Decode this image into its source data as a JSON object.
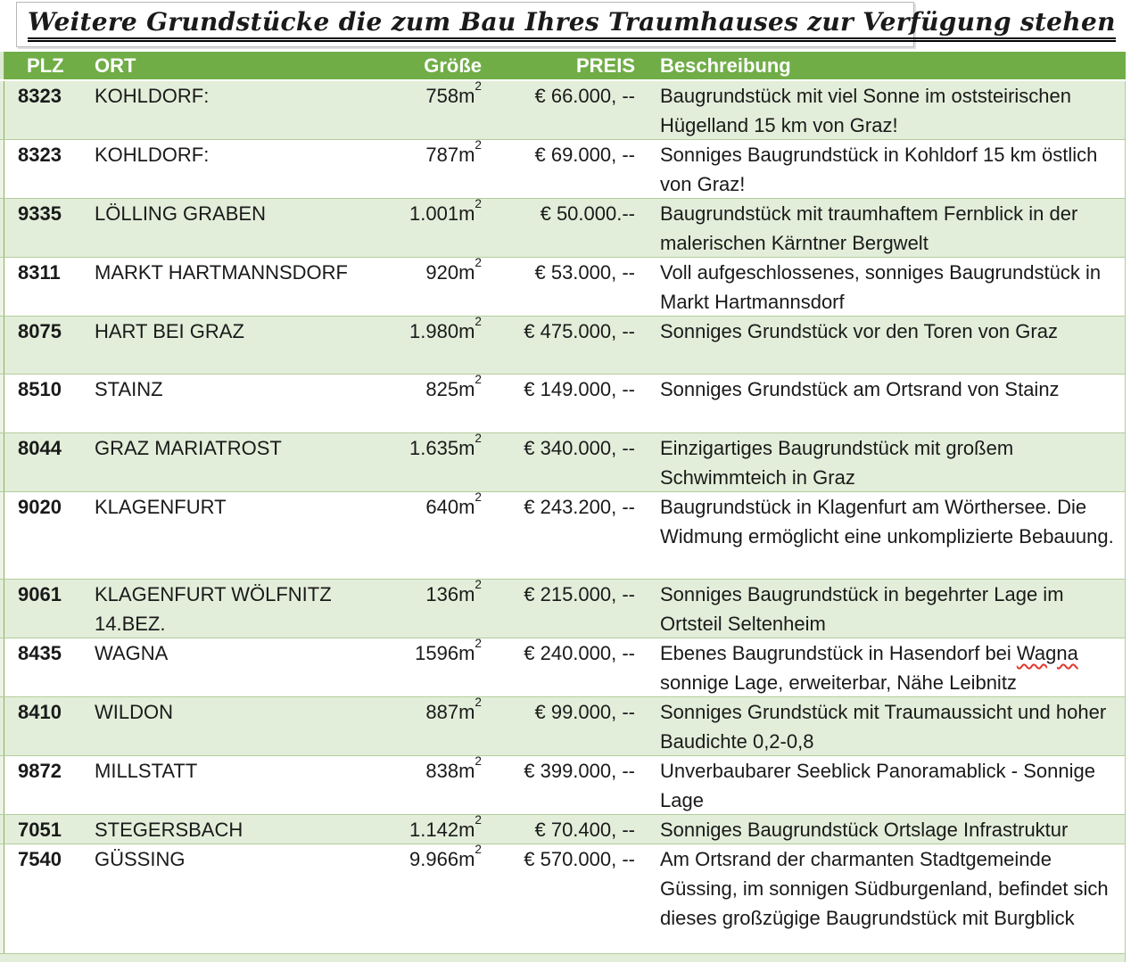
{
  "title": "Weitere Grundstücke die zum Bau Ihres Traumhauses zur Verfügung stehen",
  "colors": {
    "header_bg": "#70ad47",
    "row_alt_bg": "#e3eeda",
    "row_bg": "#ffffff",
    "border": "#b3cc9b",
    "spellcheck_underline": "#e0392e"
  },
  "table": {
    "columns": [
      "PLZ",
      "ORT",
      "Größe",
      "PREIS",
      "Beschreibung"
    ],
    "rows": [
      {
        "plz": "8323",
        "ort": "KOHLDORF:",
        "groesse": "758m²",
        "preis": "€ 66.000, --",
        "beschreibung": "Baugrundstück mit viel Sonne im oststeirischen Hügelland 15 km von Graz!"
      },
      {
        "plz": "8323",
        "ort": "KOHLDORF:",
        "groesse": "787m²",
        "preis": "€ 69.000, --",
        "beschreibung": "Sonniges Baugrundstück in Kohldorf 15 km östlich von Graz!"
      },
      {
        "plz": "9335",
        "ort": "LÖLLING GRABEN",
        "groesse": "1.001m²",
        "preis": "€ 50.000.--",
        "beschreibung": "Baugrundstück mit traumhaftem Fernblick in der malerischen Kärntner Bergwelt"
      },
      {
        "plz": "8311",
        "ort": "MARKT HARTMANNSDORF",
        "groesse": "920m²",
        "preis": "€ 53.000, --",
        "beschreibung": "Voll aufgeschlossenes, sonniges Baugrundstück in Markt Hartmannsdorf"
      },
      {
        "plz": "8075",
        "ort": "HART BEI GRAZ",
        "groesse": "1.980m²",
        "preis": "€ 475.000, --",
        "beschreibung": "Sonniges Grundstück vor den Toren von Graz"
      },
      {
        "plz": "8510",
        "ort": "STAINZ",
        "groesse": "825m²",
        "preis": "€ 149.000, --",
        "beschreibung": "Sonniges Grundstück am Ortsrand von Stainz"
      },
      {
        "plz": "8044",
        "ort": "GRAZ MARIATROST",
        "groesse": "1.635m²",
        "preis": "€ 340.000, --",
        "beschreibung": "Einzigartiges Baugrundstück mit großem Schwimmteich in Graz"
      },
      {
        "plz": "9020",
        "ort": "KLAGENFURT",
        "groesse": "640m²",
        "preis": "€ 243.200, --",
        "beschreibung": "Baugrundstück in Klagenfurt am Wörthersee. Die Widmung ermöglicht eine unkomplizierte Bebauung."
      },
      {
        "plz": "9061",
        "ort": "KLAGENFURT WÖLFNITZ\n14.BEZ.",
        "groesse": "136m²",
        "preis": "€ 215.000, --",
        "beschreibung": "Sonniges Baugrundstück in begehrter Lage im Ortsteil Seltenheim"
      },
      {
        "plz": "8435",
        "ort": "WAGNA",
        "groesse": "1596m²",
        "preis": "€ 240.000, --",
        "beschreibung": "Ebenes Baugrundstück in Hasendorf bei Wagna sonnige Lage, erweiterbar, Nähe Leibnitz",
        "spellcheck_word": "Wagna"
      },
      {
        "plz": "8410",
        "ort": "WILDON",
        "groesse": "887m²",
        "preis": "€ 99.000, --",
        "beschreibung": "Sonniges Grundstück mit Traumaussicht und hoher Baudichte 0,2-0,8"
      },
      {
        "plz": "9872",
        "ort": "MILLSTATT",
        "groesse": "838m²",
        "preis": "€ 399.000, --",
        "beschreibung": "Unverbaubarer Seeblick Panoramablick - Sonnige Lage"
      },
      {
        "plz": "7051",
        "ort": "STEGERSBACH",
        "groesse": "1.142m²",
        "preis": "€ 70.400, --",
        "beschreibung": "Sonniges Baugrundstück Ortslage Infrastruktur"
      },
      {
        "plz": "7540",
        "ort": "GÜSSING",
        "groesse": "9.966m²",
        "preis": "€ 570.000, --",
        "beschreibung": "Am Ortsrand der charmanten Stadtgemeinde Güssing, im sonnigen Südburgenland, befindet sich dieses großzügige Baugrundstück mit Burgblick"
      }
    ]
  }
}
